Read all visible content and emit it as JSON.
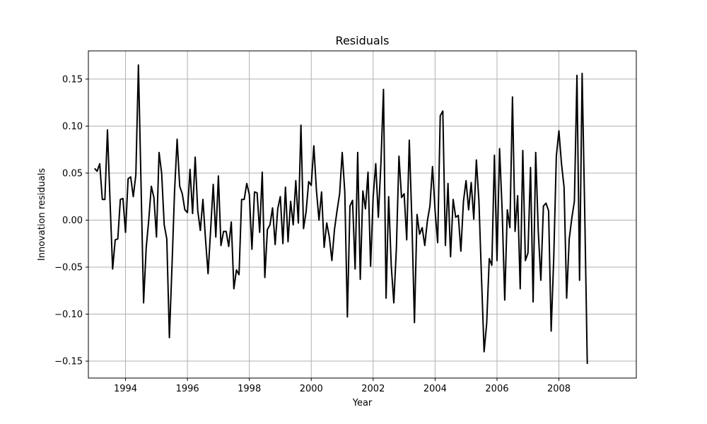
{
  "chart_data": {
    "type": "line",
    "title": "Residuals",
    "xlabel": "Year",
    "ylabel": "Innovation residuals",
    "xlim": [
      1992.8,
      2010.5
    ],
    "ylim": [
      -0.168,
      0.18
    ],
    "grid": true,
    "x_ticks": [
      1994,
      1996,
      1998,
      2000,
      2002,
      2004,
      2006,
      2008
    ],
    "x_tick_labels": [
      "1994",
      "1996",
      "1998",
      "2000",
      "2002",
      "2004",
      "2006",
      "2008"
    ],
    "y_ticks": [
      -0.15,
      -0.1,
      -0.05,
      0.0,
      0.05,
      0.1,
      0.15
    ],
    "y_tick_labels": [
      "−0.15",
      "−0.10",
      "−0.05",
      "0.00",
      "0.05",
      "0.10",
      "0.15"
    ],
    "colors": {
      "line": "#000000",
      "grid": "#b0b0b0",
      "frame": "#000000"
    },
    "series": [
      {
        "x_start": 1993.0,
        "x_step": 0.0833333,
        "values": [
          0.055,
          0.052,
          0.06,
          0.022,
          0.022,
          0.096,
          0.02,
          -0.052,
          -0.021,
          -0.02,
          0.022,
          0.023,
          -0.013,
          0.044,
          0.046,
          0.025,
          0.048,
          0.165,
          0.04,
          -0.088,
          -0.03,
          0.0,
          0.036,
          0.024,
          -0.018,
          0.072,
          0.05,
          -0.005,
          -0.02,
          -0.125,
          -0.05,
          0.03,
          0.086,
          0.036,
          0.028,
          0.011,
          0.008,
          0.054,
          0.007,
          0.067,
          0.01,
          -0.011,
          0.022,
          -0.02,
          -0.057,
          -0.01,
          0.038,
          -0.018,
          0.047,
          -0.027,
          -0.012,
          -0.012,
          -0.028,
          -0.002,
          -0.073,
          -0.053,
          -0.058,
          0.022,
          0.022,
          0.039,
          0.027,
          -0.031,
          0.03,
          0.029,
          -0.013,
          0.051,
          -0.061,
          -0.01,
          -0.005,
          0.013,
          -0.026,
          0.012,
          0.025,
          -0.025,
          0.035,
          -0.023,
          0.02,
          -0.005,
          0.042,
          -0.003,
          0.101,
          -0.009,
          0.009,
          0.041,
          0.037,
          0.079,
          0.032,
          0.0,
          0.03,
          -0.029,
          -0.003,
          -0.018,
          -0.043,
          -0.01,
          0.01,
          0.028,
          0.072,
          0.03,
          -0.103,
          0.015,
          0.021,
          -0.052,
          0.072,
          -0.063,
          0.031,
          0.012,
          0.051,
          -0.049,
          0.025,
          0.06,
          0.003,
          0.06,
          0.139,
          -0.083,
          0.025,
          -0.048,
          -0.088,
          -0.03,
          0.068,
          0.024,
          0.028,
          -0.021,
          0.085,
          0.0,
          -0.109,
          0.006,
          -0.015,
          -0.008,
          -0.027,
          -0.001,
          0.015,
          0.057,
          0.01,
          -0.024,
          0.111,
          0.116,
          -0.027,
          0.039,
          -0.039,
          0.022,
          0.003,
          0.005,
          -0.033,
          0.02,
          0.042,
          0.011,
          0.04,
          0.001,
          0.064,
          0.02,
          -0.062,
          -0.14,
          -0.11,
          -0.041,
          -0.048,
          0.069,
          -0.043,
          0.076,
          0.01,
          -0.085,
          0.011,
          -0.008,
          0.131,
          -0.012,
          0.026,
          -0.073,
          0.074,
          -0.043,
          -0.035,
          0.056,
          -0.087,
          0.072,
          -0.012,
          -0.064,
          0.015,
          0.018,
          0.01,
          -0.118,
          -0.04,
          0.068,
          0.095,
          0.06,
          0.035,
          -0.083,
          -0.02,
          0.002,
          0.02,
          0.154,
          -0.064,
          0.156,
          0.01,
          -0.153
        ]
      }
    ]
  }
}
